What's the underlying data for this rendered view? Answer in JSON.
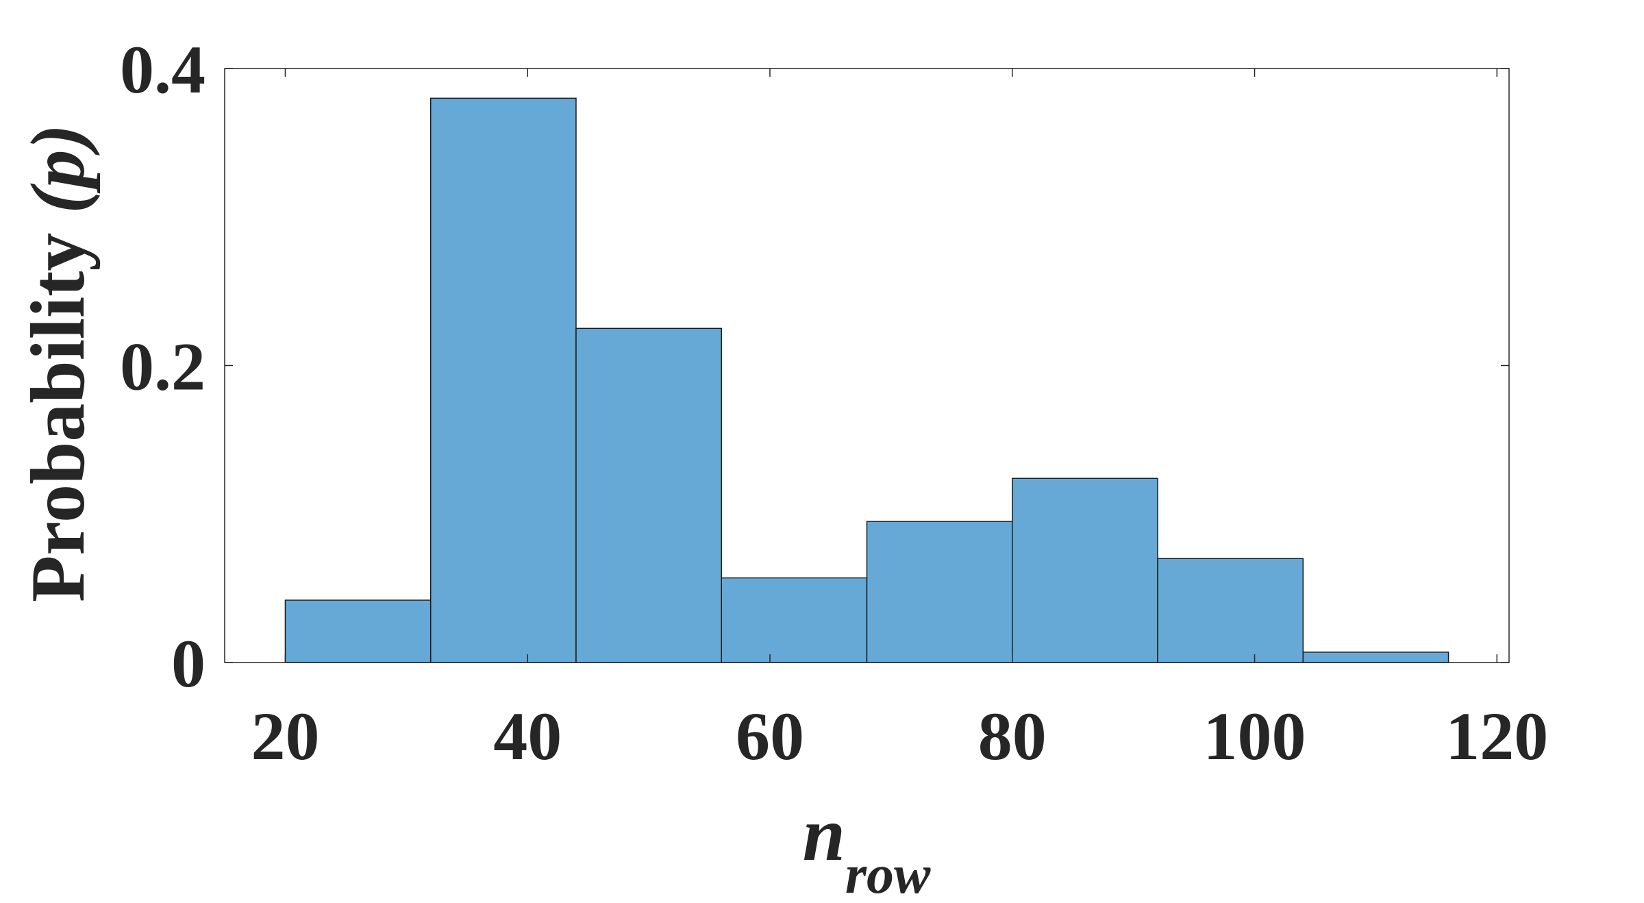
{
  "chart_data": {
    "type": "bar",
    "subtype": "histogram",
    "bin_edges": [
      20,
      32,
      44,
      56,
      68,
      80,
      92,
      104,
      116
    ],
    "values": [
      0.042,
      0.38,
      0.225,
      0.057,
      0.095,
      0.124,
      0.07,
      0.007
    ],
    "xlabel_main": "n",
    "xlabel_sub": "row",
    "ylabel_main": "Probability ",
    "ylabel_p": "(p)",
    "xlim": [
      15,
      121
    ],
    "ylim": [
      0,
      0.4
    ],
    "xticks": [
      20,
      40,
      60,
      80,
      100,
      120
    ],
    "yticks": [
      0,
      0.2,
      0.4
    ],
    "xtick_labels": [
      "20",
      "40",
      "60",
      "80",
      "100",
      "120"
    ],
    "ytick_labels": [
      "0",
      "0.2",
      "0.4"
    ],
    "bar_color": "#67a9d6",
    "edge_color": "#1a1a1a",
    "grid": false
  }
}
